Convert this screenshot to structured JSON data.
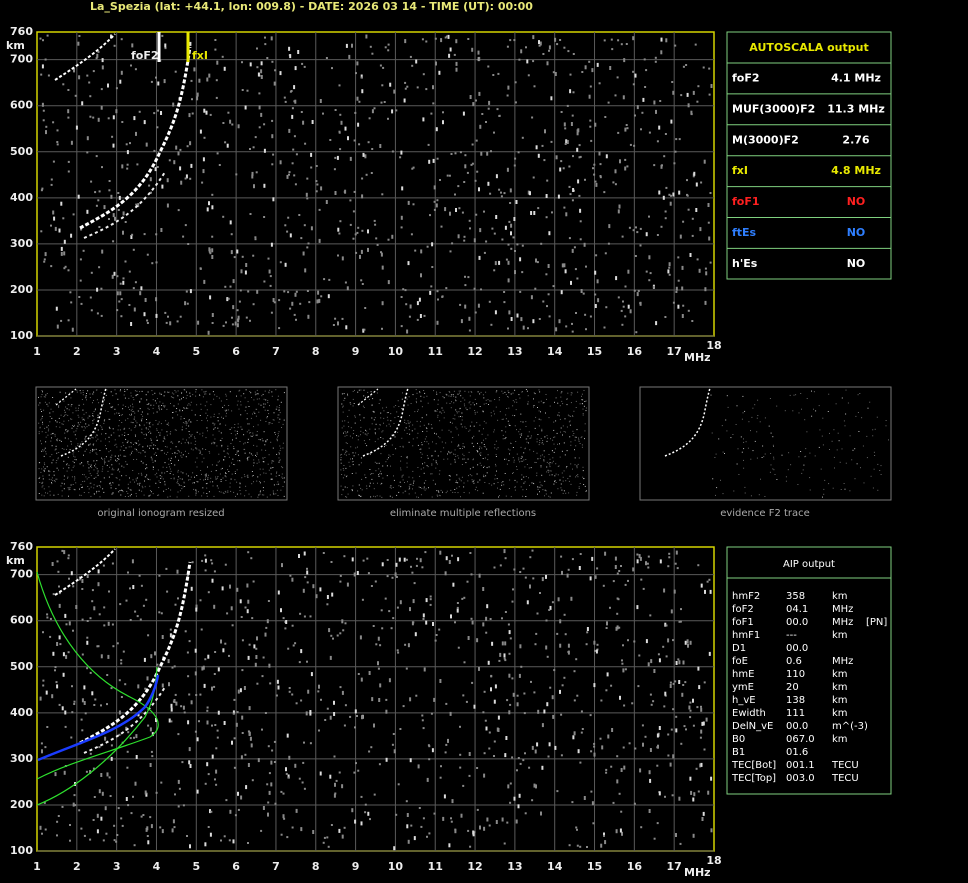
{
  "header": "La_Spezia (lat: +44.1, lon: 009.8) - DATE: 2026 03 14 - TIME (UT): 00:00",
  "ionogram_top": {
    "y_unit": "km",
    "x_unit": "MHz",
    "yticks": [
      "760",
      "700",
      "600",
      "500",
      "400",
      "300",
      "200",
      "100"
    ],
    "xticks": [
      "1",
      "2",
      "3",
      "4",
      "5",
      "6",
      "7",
      "8",
      "9",
      "10",
      "11",
      "12",
      "13",
      "14",
      "15",
      "16",
      "17",
      "18"
    ],
    "markers": [
      "foF2",
      "fxI"
    ]
  },
  "thumbnails": [
    "original ionogram resized",
    "eliminate multiple reflections",
    "evidence F2 trace"
  ],
  "ionogram_bottom": {
    "y_unit": "km",
    "x_unit": "MHz",
    "yticks": [
      "760",
      "700",
      "600",
      "500",
      "400",
      "300",
      "200",
      "100"
    ],
    "xticks": [
      "1",
      "2",
      "3",
      "4",
      "5",
      "6",
      "7",
      "8",
      "9",
      "10",
      "11",
      "12",
      "13",
      "14",
      "15",
      "16",
      "17",
      "18"
    ]
  },
  "autoscala": {
    "title": "AUTOSCALA output",
    "rows": [
      [
        "foF2",
        "4.1 MHz"
      ],
      [
        "MUF(3000)F2",
        "11.3 MHz"
      ],
      [
        "M(3000)F2",
        "2.76"
      ],
      [
        "fxI",
        "4.8 MHz"
      ],
      [
        "foF1",
        "NO"
      ],
      [
        "ftEs",
        "NO"
      ],
      [
        "h'Es",
        "NO"
      ]
    ]
  },
  "aip": {
    "title": "AIP output",
    "rows": [
      [
        "hmF2",
        "358",
        "km"
      ],
      [
        "foF2",
        "04.1",
        "MHz"
      ],
      [
        "foF1",
        "00.0",
        "MHz",
        "[PN]"
      ],
      [
        "hmF1",
        "---",
        "km"
      ],
      [
        "D1",
        "00.0"
      ],
      [
        "foE",
        "0.6",
        "MHz"
      ],
      [
        "hmE",
        "110",
        "km"
      ],
      [
        "ymE",
        "20",
        "km"
      ],
      [
        "h_vE",
        "138",
        "km"
      ],
      [
        "Ewidth",
        "111",
        "km"
      ],
      [
        "DelN_vE",
        "00.0",
        "m^(-3)"
      ],
      [
        "B0",
        "067.0",
        "km"
      ],
      [
        "B1",
        "01.6"
      ],
      [
        "TEC[Bot]",
        "001.1",
        "TECU"
      ],
      [
        "TEC[Top]",
        "003.0",
        "TECU"
      ]
    ]
  }
}
